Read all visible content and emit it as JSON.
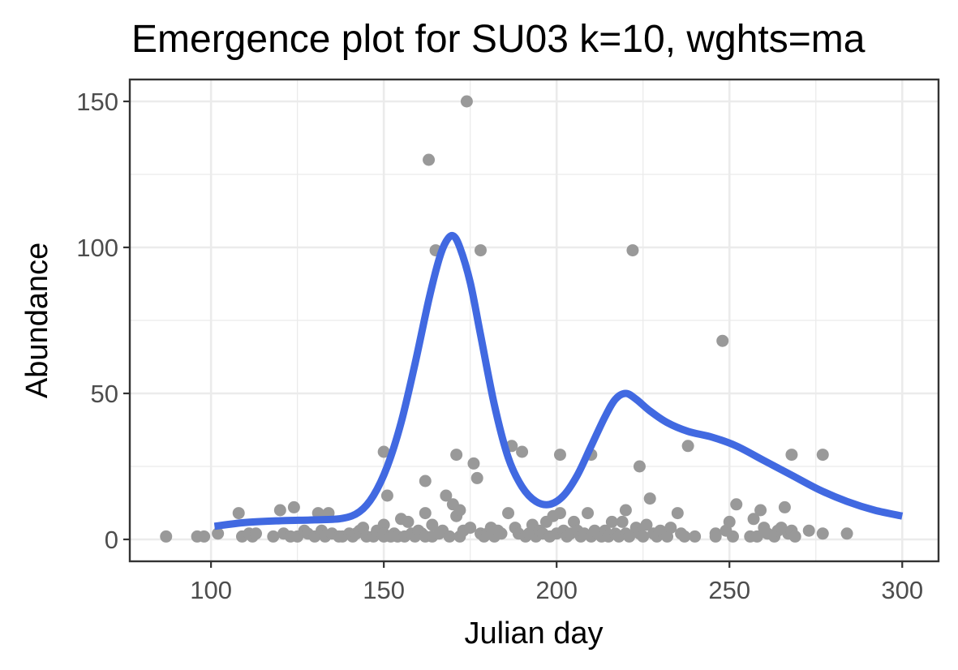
{
  "chart_data": {
    "type": "scatter",
    "title": "Emergence plot for SU03 k=10, wghts=ma",
    "xlabel": "Julian day",
    "ylabel": "Abundance",
    "xlim": [
      76.5,
      310.5
    ],
    "ylim": [
      -7.5,
      157.5
    ],
    "xticks": [
      100,
      150,
      200,
      250,
      300
    ],
    "yticks": [
      0,
      50,
      100,
      150
    ],
    "grid": true,
    "legend": "none",
    "colors": {
      "points": "#999999",
      "smooth": "#4169e1"
    },
    "series": [
      {
        "type": "scatter",
        "points": [
          [
            87,
            1
          ],
          [
            96,
            1
          ],
          [
            98,
            1
          ],
          [
            102,
            2
          ],
          [
            108,
            9
          ],
          [
            109,
            1
          ],
          [
            111,
            2
          ],
          [
            112,
            1
          ],
          [
            113,
            2
          ],
          [
            118,
            1
          ],
          [
            120,
            10
          ],
          [
            121,
            2
          ],
          [
            123,
            1
          ],
          [
            124,
            11
          ],
          [
            125,
            1
          ],
          [
            127,
            3
          ],
          [
            128,
            2
          ],
          [
            130,
            1
          ],
          [
            131,
            9
          ],
          [
            132,
            3
          ],
          [
            133,
            1
          ],
          [
            134,
            9
          ],
          [
            135,
            2
          ],
          [
            137,
            1
          ],
          [
            138,
            1
          ],
          [
            140,
            2
          ],
          [
            141,
            1
          ],
          [
            142,
            2
          ],
          [
            143,
            3
          ],
          [
            144,
            4
          ],
          [
            145,
            1
          ],
          [
            147,
            1
          ],
          [
            148,
            3
          ],
          [
            150,
            30
          ],
          [
            150,
            5
          ],
          [
            150,
            2
          ],
          [
            150,
            1
          ],
          [
            151,
            15
          ],
          [
            152,
            1
          ],
          [
            153,
            2
          ],
          [
            154,
            1
          ],
          [
            155,
            7
          ],
          [
            156,
            1
          ],
          [
            157,
            6
          ],
          [
            158,
            2
          ],
          [
            159,
            1
          ],
          [
            160,
            3
          ],
          [
            161,
            2
          ],
          [
            162,
            1
          ],
          [
            162,
            20
          ],
          [
            162,
            9
          ],
          [
            163,
            130
          ],
          [
            164,
            5
          ],
          [
            164,
            1
          ],
          [
            165,
            99
          ],
          [
            166,
            2
          ],
          [
            167,
            3
          ],
          [
            168,
            15
          ],
          [
            169,
            1
          ],
          [
            170,
            12
          ],
          [
            171,
            29
          ],
          [
            171,
            8
          ],
          [
            172,
            1
          ],
          [
            172,
            10
          ],
          [
            173,
            3
          ],
          [
            174,
            150
          ],
          [
            175,
            4
          ],
          [
            176,
            26
          ],
          [
            177,
            21
          ],
          [
            178,
            99
          ],
          [
            178,
            2
          ],
          [
            179,
            1
          ],
          [
            180,
            2
          ],
          [
            181,
            4
          ],
          [
            182,
            1
          ],
          [
            183,
            3
          ],
          [
            184,
            2
          ],
          [
            186,
            9
          ],
          [
            187,
            32
          ],
          [
            188,
            4
          ],
          [
            189,
            2
          ],
          [
            190,
            30
          ],
          [
            191,
            1
          ],
          [
            192,
            2
          ],
          [
            193,
            5
          ],
          [
            194,
            1
          ],
          [
            195,
            3
          ],
          [
            196,
            2
          ],
          [
            197,
            6
          ],
          [
            198,
            1
          ],
          [
            199,
            8
          ],
          [
            200,
            2
          ],
          [
            201,
            29
          ],
          [
            201,
            9
          ],
          [
            202,
            3
          ],
          [
            203,
            1
          ],
          [
            204,
            2
          ],
          [
            205,
            6
          ],
          [
            206,
            3
          ],
          [
            207,
            1
          ],
          [
            208,
            2
          ],
          [
            209,
            9
          ],
          [
            210,
            29
          ],
          [
            210,
            1
          ],
          [
            211,
            3
          ],
          [
            212,
            2
          ],
          [
            213,
            1
          ],
          [
            214,
            3
          ],
          [
            215,
            1
          ],
          [
            216,
            6
          ],
          [
            217,
            2
          ],
          [
            218,
            1
          ],
          [
            219,
            6
          ],
          [
            220,
            10
          ],
          [
            220,
            2
          ],
          [
            221,
            1
          ],
          [
            222,
            99
          ],
          [
            223,
            4
          ],
          [
            224,
            25
          ],
          [
            224,
            2
          ],
          [
            225,
            1
          ],
          [
            226,
            5
          ],
          [
            227,
            14
          ],
          [
            228,
            2
          ],
          [
            229,
            1
          ],
          [
            230,
            3
          ],
          [
            231,
            2
          ],
          [
            232,
            1
          ],
          [
            233,
            4
          ],
          [
            235,
            9
          ],
          [
            236,
            2
          ],
          [
            237,
            1
          ],
          [
            238,
            32
          ],
          [
            240,
            1
          ],
          [
            246,
            2
          ],
          [
            246,
            1
          ],
          [
            248,
            68
          ],
          [
            249,
            3
          ],
          [
            250,
            6
          ],
          [
            251,
            1
          ],
          [
            252,
            12
          ],
          [
            256,
            1
          ],
          [
            257,
            7
          ],
          [
            258,
            1
          ],
          [
            259,
            10
          ],
          [
            260,
            4
          ],
          [
            261,
            2
          ],
          [
            263,
            1
          ],
          [
            264,
            3
          ],
          [
            265,
            4
          ],
          [
            266,
            11
          ],
          [
            267,
            2
          ],
          [
            268,
            29
          ],
          [
            268,
            3
          ],
          [
            269,
            1
          ],
          [
            273,
            3
          ],
          [
            277,
            29
          ],
          [
            277,
            2
          ],
          [
            284,
            2
          ]
        ]
      },
      {
        "type": "line",
        "points": [
          [
            101,
            4.5
          ],
          [
            110,
            5.8
          ],
          [
            120,
            6.4
          ],
          [
            130,
            6.7
          ],
          [
            138,
            7.2
          ],
          [
            143,
            9.5
          ],
          [
            147,
            15
          ],
          [
            151,
            25
          ],
          [
            155,
            40
          ],
          [
            159,
            60
          ],
          [
            163,
            82
          ],
          [
            166,
            96
          ],
          [
            168,
            102
          ],
          [
            170,
            104
          ],
          [
            172,
            100
          ],
          [
            175,
            88
          ],
          [
            178,
            70
          ],
          [
            182,
            46
          ],
          [
            186,
            28
          ],
          [
            190,
            18
          ],
          [
            194,
            13
          ],
          [
            198,
            12
          ],
          [
            202,
            15
          ],
          [
            206,
            22
          ],
          [
            210,
            32
          ],
          [
            214,
            42
          ],
          [
            217,
            48
          ],
          [
            220,
            50
          ],
          [
            223,
            48
          ],
          [
            227,
            44
          ],
          [
            232,
            40
          ],
          [
            238,
            37
          ],
          [
            245,
            35
          ],
          [
            252,
            32
          ],
          [
            260,
            27
          ],
          [
            268,
            22
          ],
          [
            276,
            17
          ],
          [
            284,
            13
          ],
          [
            292,
            10
          ],
          [
            300,
            8
          ]
        ]
      }
    ]
  }
}
